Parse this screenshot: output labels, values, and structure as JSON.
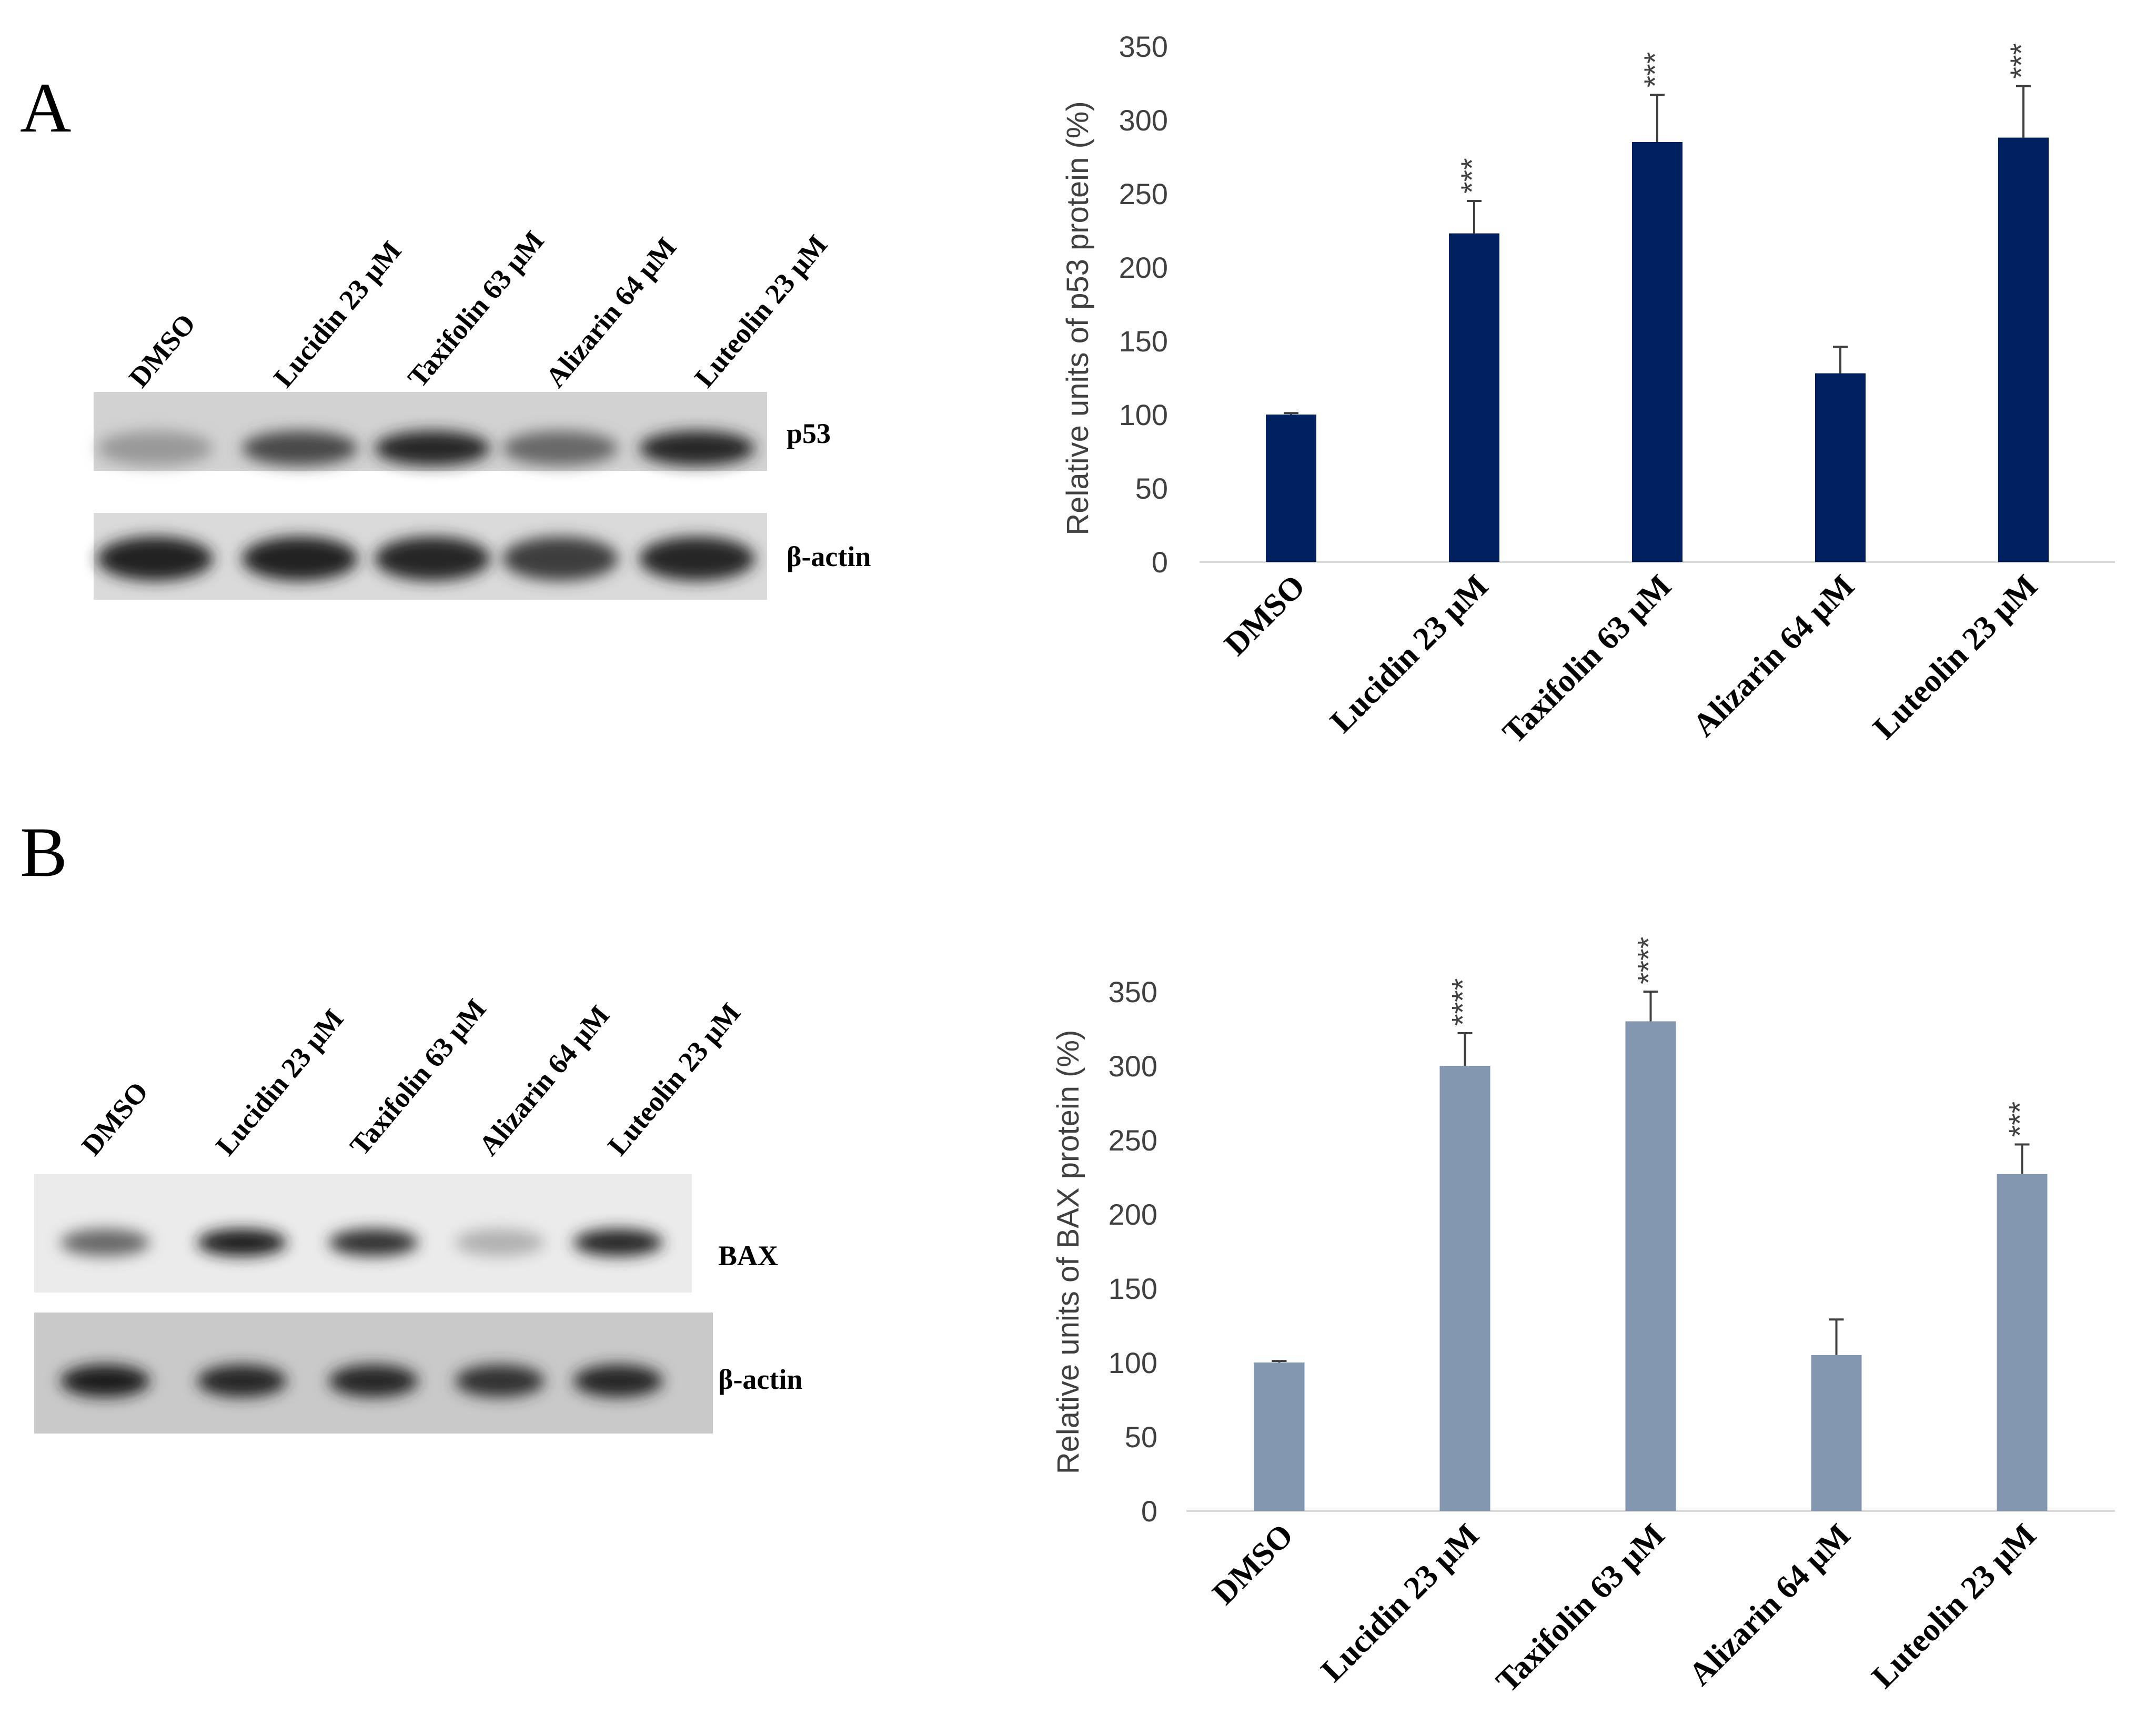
{
  "panels": [
    {
      "letter": "A",
      "blot": {
        "lane_labels": [
          "DMSO",
          "Lucidin 23 μM",
          "Taxifolin 63 μM",
          "Alizarin 64 μM",
          "Luteolin 23 μM"
        ],
        "bands": [
          {
            "label": "p53",
            "intensities": [
              0.28,
              0.72,
              0.9,
              0.55,
              0.9
            ]
          },
          {
            "label": "β-actin",
            "intensities": [
              0.92,
              0.92,
              0.9,
              0.78,
              0.9
            ]
          }
        ]
      }
    },
    {
      "letter": "B",
      "blot": {
        "lane_labels": [
          "DMSO",
          "Lucidin 23 μM",
          "Taxifolin 63 μM",
          "Alizarin 64 μM",
          "Luteolin 23 μM"
        ],
        "bands": [
          {
            "label": "BAX",
            "intensities": [
              0.55,
              0.95,
              0.85,
              0.15,
              0.9
            ]
          },
          {
            "label": "β-actin",
            "intensities": [
              0.95,
              0.9,
              0.9,
              0.85,
              0.9
            ]
          }
        ]
      }
    }
  ],
  "chart_data": [
    {
      "type": "bar",
      "categories": [
        "DMSO",
        "Lucidin 23 μM",
        "Taxifolin 63 μM",
        "Alizarin 64 μM",
        "Luteolin 23 μM"
      ],
      "values": [
        100,
        223,
        285,
        128,
        288
      ],
      "errors": [
        1,
        22,
        32,
        18,
        35
      ],
      "significance": [
        "",
        "***",
        "***",
        "",
        "***"
      ],
      "ylabel": "Relative units of p53 protein (%)",
      "ylim": [
        0,
        350
      ],
      "yticks": [
        0,
        50,
        100,
        150,
        200,
        250,
        300,
        350
      ],
      "color": "#002060",
      "grid": false
    },
    {
      "type": "bar",
      "categories": [
        "DMSO",
        "Lucidin 23 μM",
        "Taxifolin 63 μM",
        "Alizarin 64 μM",
        "Luteolin 23 μM"
      ],
      "values": [
        100,
        300,
        330,
        105,
        227
      ],
      "errors": [
        1,
        22,
        20,
        24,
        20
      ],
      "significance": [
        "",
        "****",
        "****",
        "",
        "***"
      ],
      "ylabel": "Relative units of BAX protein (%)",
      "ylim": [
        0,
        350
      ],
      "yticks": [
        0,
        50,
        100,
        150,
        200,
        250,
        300,
        350
      ],
      "color": "#8497b0",
      "grid": false
    }
  ]
}
